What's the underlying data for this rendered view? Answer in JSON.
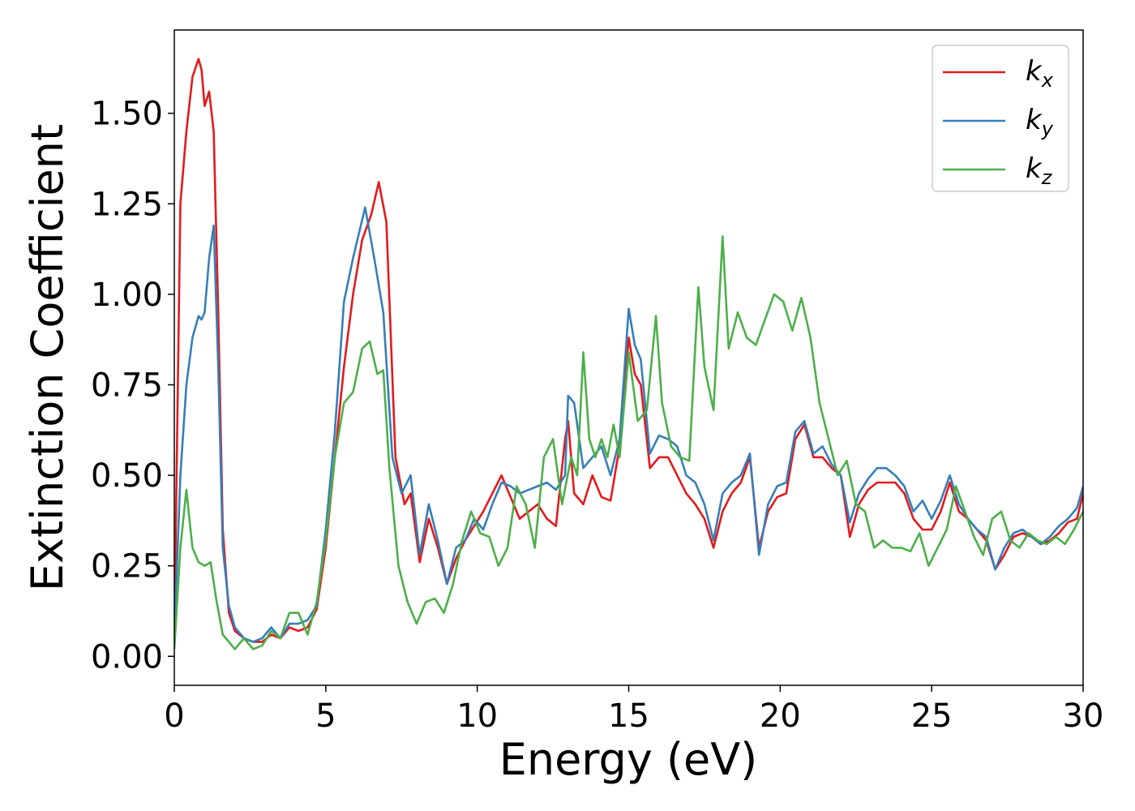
{
  "chart_data": {
    "type": "line",
    "title": "",
    "xlabel": "Energy (eV)",
    "ylabel": "Extinction Coefficient",
    "xlim": [
      0,
      30
    ],
    "ylim": [
      -0.08,
      1.73
    ],
    "xticks": [
      0,
      5,
      10,
      15,
      20,
      25,
      30
    ],
    "xtick_labels": [
      "0",
      "5",
      "10",
      "15",
      "20",
      "25",
      "30"
    ],
    "yticks": [
      0,
      0.25,
      0.5,
      0.75,
      1.0,
      1.25,
      1.5
    ],
    "ytick_labels": [
      "0.00",
      "0.25",
      "0.50",
      "0.75",
      "1.00",
      "1.25",
      "1.50"
    ],
    "grid": false,
    "legend_position": "top-right",
    "series": [
      {
        "name": "k",
        "subscript": "x",
        "color": "#e41a1c",
        "x": [
          0,
          0.2,
          0.4,
          0.6,
          0.8,
          0.9,
          1.0,
          1.15,
          1.3,
          1.45,
          1.6,
          1.8,
          2.0,
          2.3,
          2.6,
          2.9,
          3.2,
          3.5,
          3.8,
          4.1,
          4.4,
          4.7,
          5.0,
          5.3,
          5.6,
          5.9,
          6.2,
          6.5,
          6.75,
          7.0,
          7.3,
          7.6,
          7.8,
          8.1,
          8.4,
          8.7,
          9.0,
          9.3,
          9.6,
          9.9,
          10.2,
          10.5,
          10.8,
          11.1,
          11.4,
          11.7,
          12.0,
          12.3,
          12.6,
          12.9,
          13.0,
          13.2,
          13.5,
          13.8,
          14.1,
          14.4,
          14.7,
          15.0,
          15.2,
          15.4,
          15.7,
          16.0,
          16.3,
          16.6,
          16.9,
          17.2,
          17.5,
          17.8,
          18.1,
          18.4,
          18.7,
          19.0,
          19.3,
          19.6,
          19.9,
          20.2,
          20.5,
          20.8,
          21.1,
          21.4,
          21.7,
          22.0,
          22.3,
          22.6,
          22.9,
          23.2,
          23.5,
          23.8,
          24.1,
          24.4,
          24.7,
          25.0,
          25.3,
          25.6,
          25.9,
          26.2,
          26.5,
          26.8,
          27.1,
          27.4,
          27.7,
          28.0,
          28.3,
          28.6,
          28.9,
          29.2,
          29.5,
          29.8,
          30.0
        ],
        "y": [
          0.05,
          1.25,
          1.45,
          1.6,
          1.65,
          1.62,
          1.52,
          1.56,
          1.45,
          0.95,
          0.35,
          0.12,
          0.07,
          0.05,
          0.04,
          0.04,
          0.06,
          0.05,
          0.08,
          0.07,
          0.08,
          0.13,
          0.3,
          0.55,
          0.8,
          1.0,
          1.15,
          1.22,
          1.31,
          1.2,
          0.55,
          0.42,
          0.45,
          0.26,
          0.38,
          0.3,
          0.2,
          0.27,
          0.32,
          0.36,
          0.4,
          0.45,
          0.5,
          0.44,
          0.38,
          0.4,
          0.42,
          0.38,
          0.36,
          0.6,
          0.65,
          0.45,
          0.42,
          0.5,
          0.44,
          0.43,
          0.58,
          0.88,
          0.78,
          0.75,
          0.52,
          0.55,
          0.55,
          0.5,
          0.45,
          0.42,
          0.38,
          0.3,
          0.4,
          0.45,
          0.48,
          0.55,
          0.3,
          0.4,
          0.44,
          0.45,
          0.6,
          0.64,
          0.55,
          0.55,
          0.52,
          0.5,
          0.33,
          0.42,
          0.46,
          0.48,
          0.48,
          0.48,
          0.45,
          0.38,
          0.35,
          0.35,
          0.4,
          0.48,
          0.4,
          0.38,
          0.35,
          0.32,
          0.24,
          0.28,
          0.33,
          0.34,
          0.33,
          0.31,
          0.32,
          0.34,
          0.37,
          0.38,
          0.45
        ]
      },
      {
        "name": "k",
        "subscript": "y",
        "color": "#377eb8",
        "x": [
          0,
          0.2,
          0.4,
          0.6,
          0.8,
          0.9,
          1.0,
          1.15,
          1.3,
          1.45,
          1.6,
          1.8,
          2.0,
          2.3,
          2.6,
          2.9,
          3.2,
          3.5,
          3.8,
          4.1,
          4.4,
          4.7,
          5.0,
          5.3,
          5.6,
          5.9,
          6.3,
          6.6,
          6.9,
          7.2,
          7.5,
          7.8,
          8.1,
          8.4,
          8.7,
          9.0,
          9.3,
          9.6,
          9.9,
          10.2,
          10.5,
          10.8,
          11.1,
          11.4,
          11.7,
          12.0,
          12.3,
          12.6,
          12.9,
          13.0,
          13.2,
          13.5,
          13.8,
          14.1,
          14.4,
          14.7,
          15.0,
          15.2,
          15.4,
          15.7,
          16.0,
          16.3,
          16.6,
          16.9,
          17.2,
          17.5,
          17.8,
          18.1,
          18.4,
          18.7,
          19.0,
          19.3,
          19.6,
          19.9,
          20.2,
          20.5,
          20.8,
          21.1,
          21.4,
          21.7,
          22.0,
          22.3,
          22.6,
          22.9,
          23.2,
          23.5,
          23.8,
          24.1,
          24.4,
          24.7,
          25.0,
          25.3,
          25.6,
          25.9,
          26.2,
          26.5,
          26.8,
          27.1,
          27.4,
          27.7,
          28.0,
          28.3,
          28.6,
          28.9,
          29.2,
          29.5,
          29.8,
          30.0
        ],
        "y": [
          0.05,
          0.5,
          0.75,
          0.88,
          0.94,
          0.93,
          0.95,
          1.1,
          1.19,
          0.8,
          0.3,
          0.14,
          0.08,
          0.05,
          0.04,
          0.05,
          0.08,
          0.05,
          0.09,
          0.09,
          0.1,
          0.14,
          0.35,
          0.62,
          0.98,
          1.1,
          1.24,
          1.1,
          0.95,
          0.55,
          0.45,
          0.5,
          0.28,
          0.42,
          0.32,
          0.2,
          0.3,
          0.32,
          0.38,
          0.35,
          0.42,
          0.48,
          0.47,
          0.45,
          0.46,
          0.47,
          0.48,
          0.46,
          0.5,
          0.72,
          0.7,
          0.52,
          0.55,
          0.58,
          0.5,
          0.6,
          0.96,
          0.86,
          0.82,
          0.56,
          0.61,
          0.6,
          0.58,
          0.5,
          0.48,
          0.42,
          0.32,
          0.45,
          0.48,
          0.5,
          0.56,
          0.28,
          0.42,
          0.47,
          0.48,
          0.62,
          0.65,
          0.56,
          0.58,
          0.53,
          0.5,
          0.37,
          0.45,
          0.49,
          0.52,
          0.52,
          0.5,
          0.47,
          0.4,
          0.43,
          0.38,
          0.43,
          0.5,
          0.42,
          0.38,
          0.35,
          0.33,
          0.24,
          0.3,
          0.34,
          0.35,
          0.33,
          0.31,
          0.33,
          0.36,
          0.38,
          0.41,
          0.47
        ]
      },
      {
        "name": "k",
        "subscript": "z",
        "color": "#4daf4a",
        "x": [
          0,
          0.2,
          0.4,
          0.6,
          0.8,
          1.0,
          1.2,
          1.4,
          1.6,
          1.8,
          2.0,
          2.3,
          2.6,
          2.9,
          3.2,
          3.5,
          3.8,
          4.1,
          4.4,
          4.7,
          5.0,
          5.3,
          5.6,
          5.9,
          6.2,
          6.45,
          6.7,
          6.9,
          7.1,
          7.4,
          7.7,
          8.0,
          8.3,
          8.6,
          8.9,
          9.2,
          9.5,
          9.8,
          10.1,
          10.4,
          10.7,
          11.0,
          11.3,
          11.6,
          11.9,
          12.2,
          12.5,
          12.8,
          13.1,
          13.3,
          13.5,
          13.7,
          13.9,
          14.1,
          14.3,
          14.5,
          14.7,
          15.0,
          15.3,
          15.6,
          15.9,
          16.1,
          16.4,
          16.7,
          17.0,
          17.3,
          17.5,
          17.8,
          18.1,
          18.3,
          18.6,
          18.9,
          19.2,
          19.5,
          19.8,
          20.1,
          20.4,
          20.7,
          21.0,
          21.3,
          21.6,
          21.9,
          22.2,
          22.5,
          22.8,
          23.1,
          23.4,
          23.7,
          24.0,
          24.3,
          24.6,
          24.9,
          25.2,
          25.5,
          25.8,
          26.1,
          26.4,
          26.7,
          27.0,
          27.3,
          27.6,
          27.9,
          28.2,
          28.5,
          28.8,
          29.1,
          29.4,
          29.7,
          30.0
        ],
        "y": [
          0.02,
          0.3,
          0.46,
          0.3,
          0.26,
          0.25,
          0.26,
          0.15,
          0.06,
          0.04,
          0.02,
          0.05,
          0.02,
          0.03,
          0.07,
          0.05,
          0.12,
          0.12,
          0.06,
          0.15,
          0.32,
          0.55,
          0.7,
          0.73,
          0.85,
          0.87,
          0.78,
          0.79,
          0.52,
          0.25,
          0.15,
          0.09,
          0.15,
          0.16,
          0.12,
          0.2,
          0.32,
          0.4,
          0.34,
          0.33,
          0.25,
          0.3,
          0.47,
          0.42,
          0.3,
          0.55,
          0.6,
          0.42,
          0.55,
          0.5,
          0.84,
          0.6,
          0.55,
          0.6,
          0.55,
          0.64,
          0.55,
          0.84,
          0.65,
          0.68,
          0.94,
          0.7,
          0.58,
          0.55,
          0.54,
          1.02,
          0.8,
          0.68,
          1.16,
          0.85,
          0.95,
          0.88,
          0.86,
          0.93,
          1.0,
          0.98,
          0.9,
          0.99,
          0.88,
          0.7,
          0.6,
          0.5,
          0.54,
          0.42,
          0.4,
          0.3,
          0.32,
          0.3,
          0.3,
          0.29,
          0.34,
          0.25,
          0.3,
          0.35,
          0.47,
          0.4,
          0.33,
          0.28,
          0.38,
          0.4,
          0.32,
          0.3,
          0.34,
          0.32,
          0.31,
          0.33,
          0.31,
          0.35,
          0.4
        ]
      }
    ]
  }
}
